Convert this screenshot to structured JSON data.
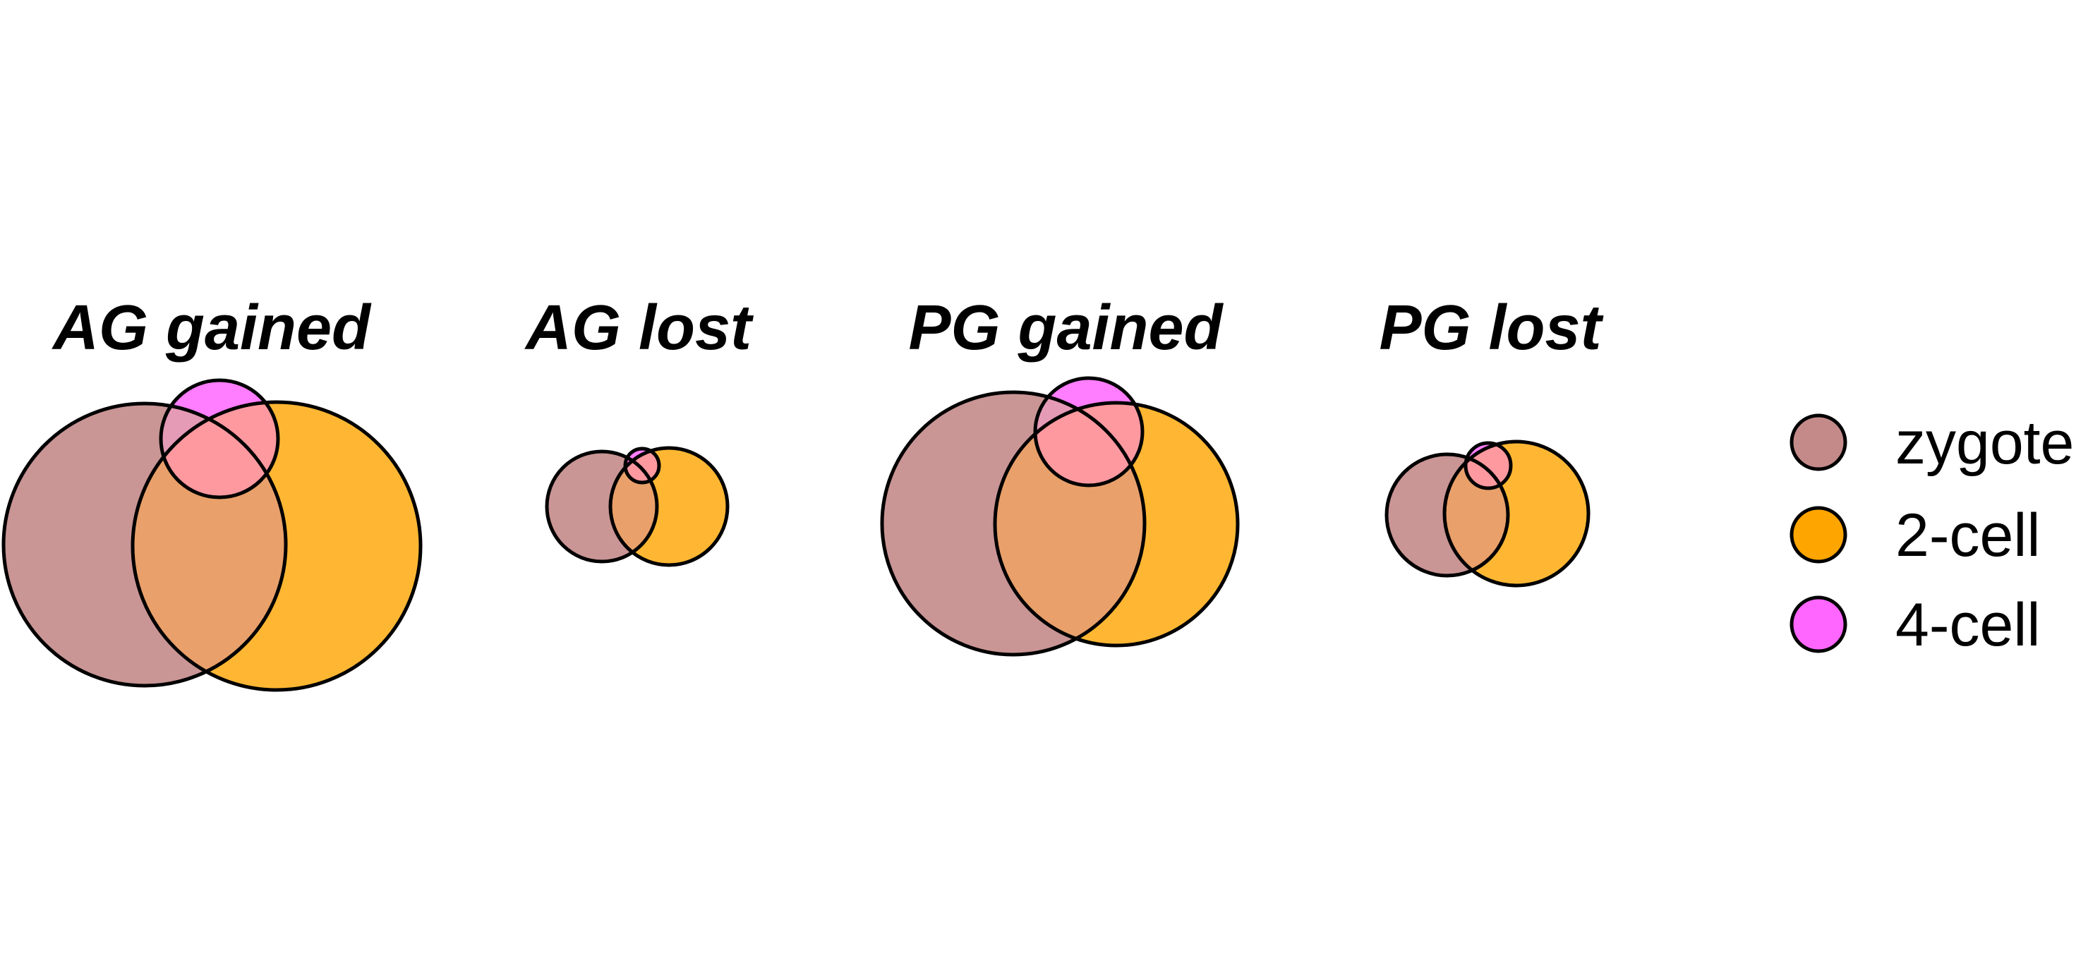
{
  "legend": {
    "items": [
      {
        "label": "zygote",
        "color": "#C48A8A"
      },
      {
        "label": "2-cell",
        "color": "#FFA500"
      },
      {
        "label": "4-cell",
        "color": "#FF66FF"
      }
    ]
  },
  "panels": [
    {
      "title": "AG gained"
    },
    {
      "title": "AG lost"
    },
    {
      "title": "PG gained"
    },
    {
      "title": "PG lost"
    }
  ]
}
